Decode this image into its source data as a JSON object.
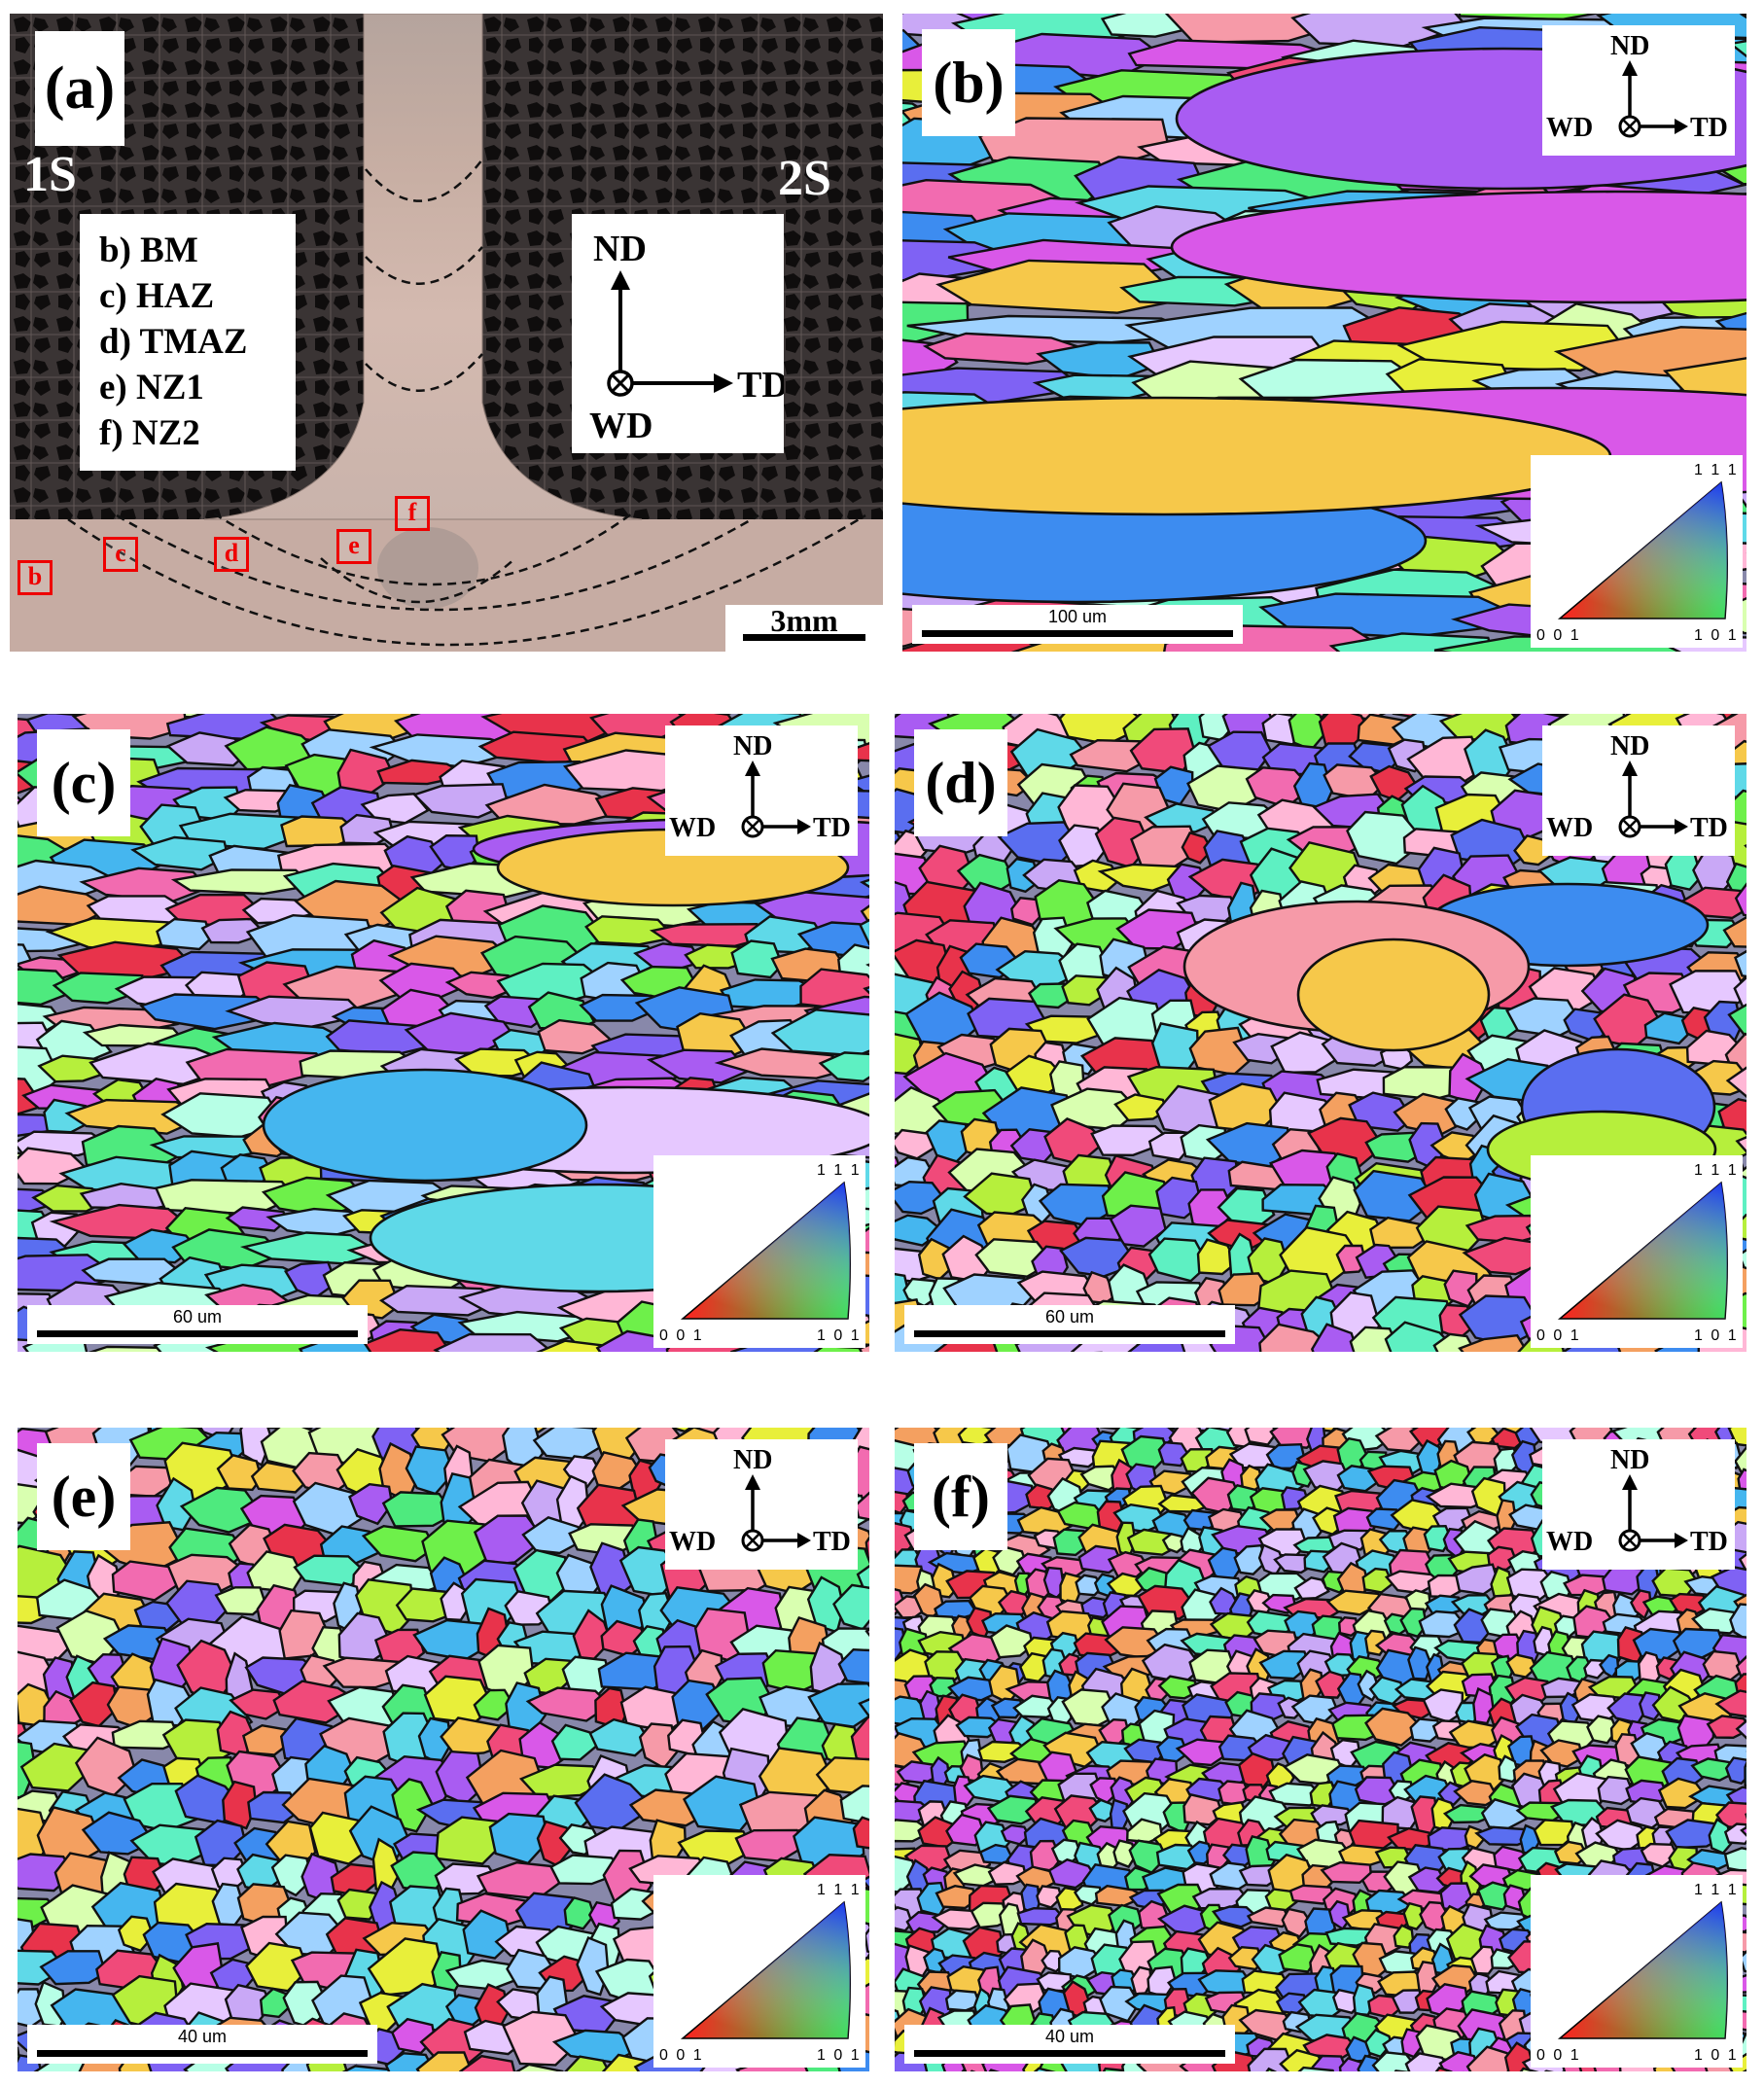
{
  "panel_a": {
    "label": "(a)",
    "side_left": "1S",
    "side_right": "2S",
    "legend": [
      "b) BM",
      "c) HAZ",
      "d) TMAZ",
      "e) NZ1",
      "f) NZ2"
    ],
    "axes": {
      "up": "ND",
      "right": "TD",
      "into": "WD"
    },
    "markers": [
      "b",
      "c",
      "d",
      "e",
      "f"
    ],
    "scale": "3mm"
  },
  "ebsd_panels": [
    {
      "id": "b",
      "label": "(b)",
      "scale": "100 um",
      "axes": {
        "up": "ND",
        "left": "WD",
        "right": "TD"
      },
      "ipf": {
        "top": "1 1 1",
        "bl": "0 0 1",
        "br": "1 0 1"
      }
    },
    {
      "id": "c",
      "label": "(c)",
      "scale": "60 um",
      "axes": {
        "up": "ND",
        "left": "WD",
        "right": "TD"
      },
      "ipf": {
        "top": "1 1 1",
        "bl": "0 0 1",
        "br": "1 0 1"
      }
    },
    {
      "id": "d",
      "label": "(d)",
      "scale": "60 um",
      "axes": {
        "up": "ND",
        "left": "WD",
        "right": "TD"
      },
      "ipf": {
        "top": "1 1 1",
        "bl": "0 0 1",
        "br": "1 0 1"
      }
    },
    {
      "id": "e",
      "label": "(e)",
      "scale": "40 um",
      "axes": {
        "up": "ND",
        "left": "WD",
        "right": "TD"
      },
      "ipf": {
        "top": "1 1 1",
        "bl": "0 0 1",
        "br": "1 0 1"
      }
    },
    {
      "id": "f",
      "label": "(f)",
      "scale": "40 um",
      "axes": {
        "up": "ND",
        "left": "WD",
        "right": "TD"
      },
      "ipf": {
        "top": "1 1 1",
        "bl": "0 0 1",
        "br": "1 0 1"
      }
    }
  ],
  "colors": {
    "ipf_palette": [
      "#e8334b",
      "#f04a7a",
      "#f26bb0",
      "#d958e8",
      "#a95cf2",
      "#7f62f4",
      "#5a6ef0",
      "#3d8cf0",
      "#45b6ef",
      "#5fd9e8",
      "#5ef0c2",
      "#4eea7e",
      "#6ef04a",
      "#b6ef3c",
      "#e8ef3a",
      "#f6c84a",
      "#f4a060",
      "#f69aa8",
      "#ffb7d6",
      "#e6c8ff",
      "#c9a8f6",
      "#9fd2ff",
      "#b7ffe6",
      "#d9ffb0"
    ],
    "macro_bg": "#262323",
    "weld_metal": "#c4aca2",
    "marker": "#e00000"
  }
}
